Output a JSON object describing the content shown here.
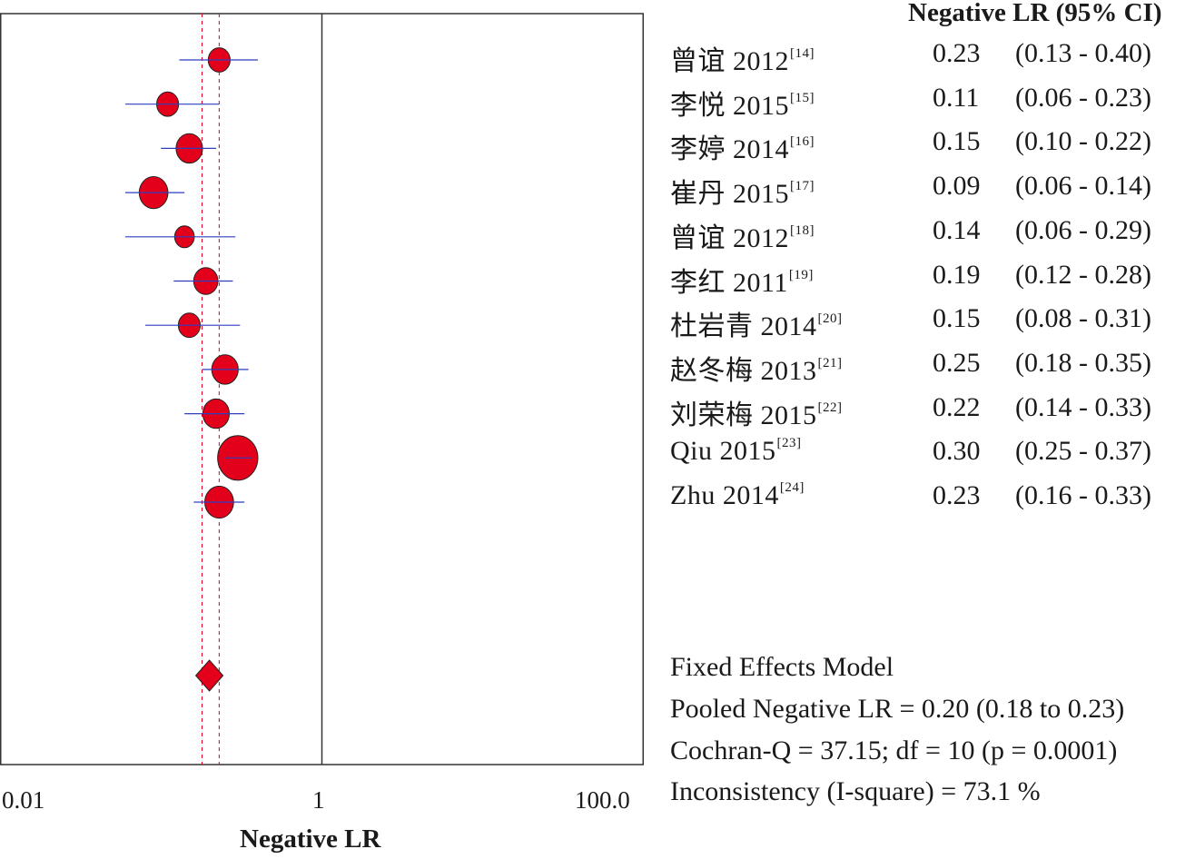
{
  "chart_data": {
    "type": "forest",
    "xlabel": "Negative LR",
    "x_scale": "log",
    "xlim": [
      0.01,
      100.0
    ],
    "x_tick_labels": [
      "0.01",
      "1",
      "100.0"
    ],
    "x_ticks": [
      0.01,
      1,
      100
    ],
    "reference_line": 1,
    "column_header": "Negative LR (95% CI)",
    "studies": [
      {
        "name": "曾谊 2012",
        "ref": "[14]",
        "estimate": 0.23,
        "lower": 0.13,
        "upper": 0.4,
        "est_text": "0.23",
        "ci_text": "(0.13 - 0.40)",
        "weight": 3
      },
      {
        "name": "李悦 2015",
        "ref": "[15]",
        "estimate": 0.11,
        "lower": 0.06,
        "upper": 0.23,
        "est_text": "0.11",
        "ci_text": "(0.06 - 0.23)",
        "weight": 3
      },
      {
        "name": "李婷 2014",
        "ref": "[16]",
        "estimate": 0.15,
        "lower": 0.1,
        "upper": 0.22,
        "est_text": "0.15",
        "ci_text": "(0.10 - 0.22)",
        "weight": 4
      },
      {
        "name": "崔丹 2015",
        "ref": "[17]",
        "estimate": 0.09,
        "lower": 0.06,
        "upper": 0.14,
        "est_text": "0.09",
        "ci_text": "(0.06 - 0.14)",
        "weight": 4.5
      },
      {
        "name": "曾谊 2012",
        "ref": "[18]",
        "estimate": 0.14,
        "lower": 0.06,
        "upper": 0.29,
        "est_text": "0.14",
        "ci_text": "(0.06 - 0.29)",
        "weight": 2.5
      },
      {
        "name": "李红 2011",
        "ref": "[19]",
        "estimate": 0.19,
        "lower": 0.12,
        "upper": 0.28,
        "est_text": "0.19",
        "ci_text": "(0.12 - 0.28)",
        "weight": 3.5
      },
      {
        "name": "杜岩青 2014",
        "ref": "[20]",
        "estimate": 0.15,
        "lower": 0.08,
        "upper": 0.31,
        "est_text": "0.15",
        "ci_text": "(0.08 - 0.31)",
        "weight": 3
      },
      {
        "name": "赵冬梅 2013",
        "ref": "[21]",
        "estimate": 0.25,
        "lower": 0.18,
        "upper": 0.35,
        "est_text": "0.25",
        "ci_text": "(0.18 - 0.35)",
        "weight": 4
      },
      {
        "name": "刘荣梅 2015",
        "ref": "[22]",
        "estimate": 0.22,
        "lower": 0.14,
        "upper": 0.33,
        "est_text": "0.22",
        "ci_text": "(0.14 - 0.33)",
        "weight": 4
      },
      {
        "name": "Qiu 2015",
        "ref": "[23]",
        "estimate": 0.3,
        "lower": 0.25,
        "upper": 0.37,
        "est_text": "0.30",
        "ci_text": "(0.25 - 0.37)",
        "weight": 7
      },
      {
        "name": "Zhu 2014",
        "ref": "[24]",
        "estimate": 0.23,
        "lower": 0.16,
        "upper": 0.33,
        "est_text": "0.23",
        "ci_text": "(0.16 - 0.33)",
        "weight": 4.5
      }
    ],
    "pooled": {
      "estimate": 0.2,
      "lower": 0.18,
      "upper": 0.23
    },
    "summary_text": [
      "Fixed Effects Model",
      "Pooled Negative LR = 0.20 (0.18 to 0.23)",
      "Cochran-Q = 37.15; df =  10 (p = 0.0001)",
      "Inconsistency (I-square) = 73.1 %"
    ],
    "colors": {
      "marker": "#e3001b",
      "ci_line": "#2f3fbf",
      "pooled_line": "#e3001b",
      "frame": "#333333"
    }
  }
}
